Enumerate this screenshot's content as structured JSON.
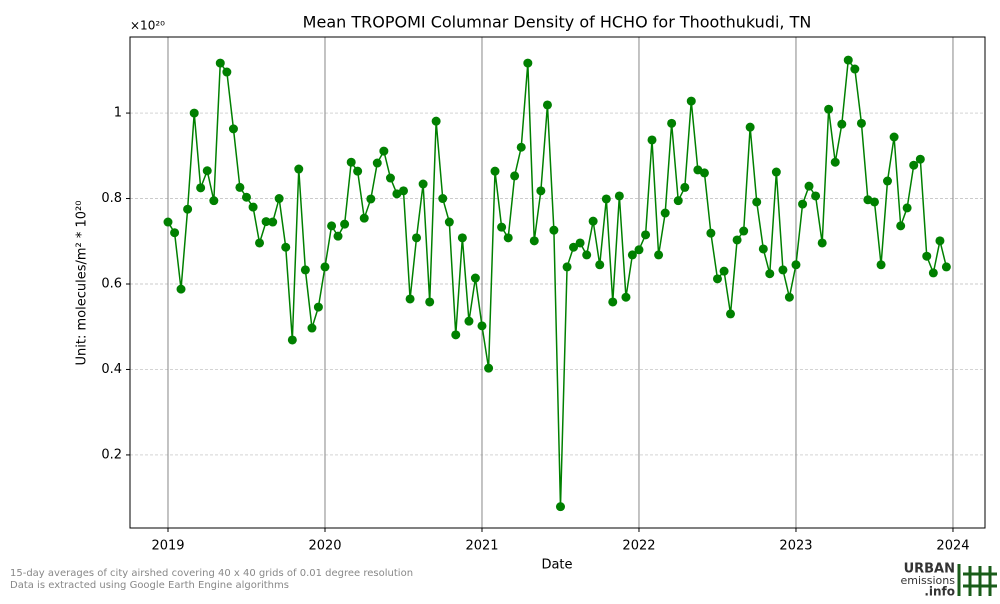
{
  "chart_data": {
    "type": "line",
    "title": "Mean TROPOMI Columnar Density of HCHO for Thoothukudi, TN",
    "x_label": "Date",
    "y_label": "Unit: molecules/m² * 10²⁰",
    "y_multiplier": "×10²⁰",
    "x": [
      2019,
      2019.042,
      2019.083,
      2019.125,
      2019.167,
      2019.208,
      2019.25,
      2019.292,
      2019.333,
      2019.375,
      2019.417,
      2019.458,
      2019.5,
      2019.542,
      2019.583,
      2019.625,
      2019.667,
      2019.708,
      2019.75,
      2019.792,
      2019.833,
      2019.875,
      2019.917,
      2019.958,
      2020,
      2020.042,
      2020.083,
      2020.125,
      2020.167,
      2020.208,
      2020.25,
      2020.292,
      2020.333,
      2020.375,
      2020.417,
      2020.458,
      2020.5,
      2020.542,
      2020.583,
      2020.625,
      2020.667,
      2020.708,
      2020.75,
      2020.792,
      2020.833,
      2020.875,
      2020.917,
      2020.958,
      2021,
      2021.042,
      2021.083,
      2021.125,
      2021.167,
      2021.208,
      2021.25,
      2021.292,
      2021.333,
      2021.375,
      2021.417,
      2021.458,
      2021.5,
      2021.542,
      2021.583,
      2021.625,
      2021.667,
      2021.708,
      2021.75,
      2021.792,
      2021.833,
      2021.875,
      2021.917,
      2021.958,
      2022,
      2022.042,
      2022.083,
      2022.125,
      2022.167,
      2022.208,
      2022.25,
      2022.292,
      2022.333,
      2022.375,
      2022.417,
      2022.458,
      2022.5,
      2022.542,
      2022.583,
      2022.625,
      2022.667,
      2022.708,
      2022.75,
      2022.792,
      2022.833,
      2022.875,
      2022.917,
      2022.958,
      2023,
      2023.042,
      2023.083,
      2023.125,
      2023.167,
      2023.208,
      2023.25,
      2023.292,
      2023.333,
      2023.375,
      2023.417,
      2023.458,
      2023.5,
      2023.542,
      2023.583,
      2023.625,
      2023.667,
      2023.708,
      2023.75,
      2023.792,
      2023.833,
      2023.875,
      2023.917,
      2023.958
    ],
    "series": [
      {
        "name": "HCHO",
        "color": "#008000",
        "values": [
          0.745,
          0.72,
          0.588,
          0.775,
          1.0,
          0.825,
          0.865,
          0.795,
          1.117,
          1.096,
          0.963,
          0.826,
          0.803,
          0.78,
          0.696,
          0.746,
          0.745,
          0.8,
          0.686,
          0.469,
          0.869,
          0.633,
          0.497,
          0.546,
          0.64,
          0.736,
          0.712,
          0.74,
          0.885,
          0.864,
          0.754,
          0.799,
          0.883,
          0.911,
          0.848,
          0.811,
          0.818,
          0.565,
          0.708,
          0.834,
          0.558,
          0.981,
          0.8,
          0.745,
          0.481,
          0.708,
          0.513,
          0.614,
          0.502,
          0.403,
          0.864,
          0.733,
          0.708,
          0.853,
          0.92,
          1.117,
          0.701,
          0.818,
          1.019,
          0.726,
          0.079,
          0.64,
          0.686,
          0.696,
          0.668,
          0.747,
          0.645,
          0.799,
          0.558,
          0.806,
          0.569,
          0.668,
          0.68,
          0.715,
          0.937,
          0.668,
          0.766,
          0.976,
          0.795,
          0.826,
          1.028,
          0.867,
          0.86,
          0.719,
          0.612,
          0.63,
          0.53,
          0.703,
          0.724,
          0.967,
          0.792,
          0.682,
          0.624,
          0.862,
          0.633,
          0.569,
          0.645,
          0.787,
          0.829,
          0.806,
          0.696,
          1.009,
          0.885,
          0.974,
          1.124,
          1.103,
          0.976,
          0.797,
          0.792,
          0.645,
          0.841,
          0.944,
          0.736,
          0.778,
          0.878,
          0.892,
          0.665,
          0.626,
          0.701,
          0.64
        ]
      }
    ],
    "xlim": [
      2018.758,
      2024.204
    ],
    "xticks": [
      2019,
      2020,
      2021,
      2022,
      2023,
      2024
    ],
    "ylim": [
      0.029,
      1.178
    ],
    "yticks": [
      0.2,
      0.4,
      0.6,
      0.8,
      1.0
    ],
    "grid": true
  },
  "footer": {
    "note1": "15-day averages of city airshed covering 40 x 40 grids of 0.01 degree resolution",
    "note2": "Data is extracted using Google Earth Engine algorithms",
    "logo_top": "URBAN",
    "logo_mid": "emissions",
    "logo_bottom": ".info"
  }
}
